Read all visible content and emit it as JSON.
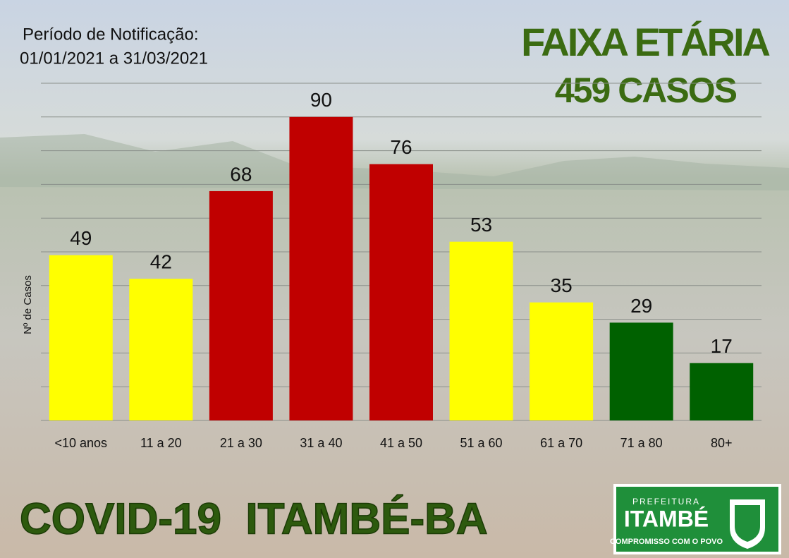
{
  "header": {
    "period_label": "Período de Notificação:",
    "period": "01/01/2021 a 31/03/2021",
    "title": "FAIXA ETÁRIA",
    "subtitle": "459 CASOS"
  },
  "chart_data": {
    "type": "bar",
    "y_label": "Nº de Casos",
    "categories": [
      "<10 anos",
      "11 a 20",
      "21 a 30",
      "31 a 40",
      "41 a 50",
      "51 a 60",
      "61 a 70",
      "71 a 80",
      "80+"
    ],
    "values": [
      49,
      42,
      68,
      90,
      76,
      53,
      35,
      29,
      17
    ],
    "colors": [
      "#ffff00",
      "#ffff00",
      "#c00000",
      "#c00000",
      "#c00000",
      "#ffff00",
      "#ffff00",
      "#006100",
      "#006100"
    ],
    "ylim": [
      0,
      100
    ],
    "yticks": [
      0,
      10,
      20,
      30,
      40,
      50,
      60,
      70,
      80,
      90,
      100
    ],
    "grid": true
  },
  "footer": {
    "title": "COVID-19  ITAMBÉ-BA",
    "logo_top": "PREFEITURA",
    "logo_name": "ITAMBÉ",
    "logo_motto": "COMPROMISSO COM O POVO"
  }
}
